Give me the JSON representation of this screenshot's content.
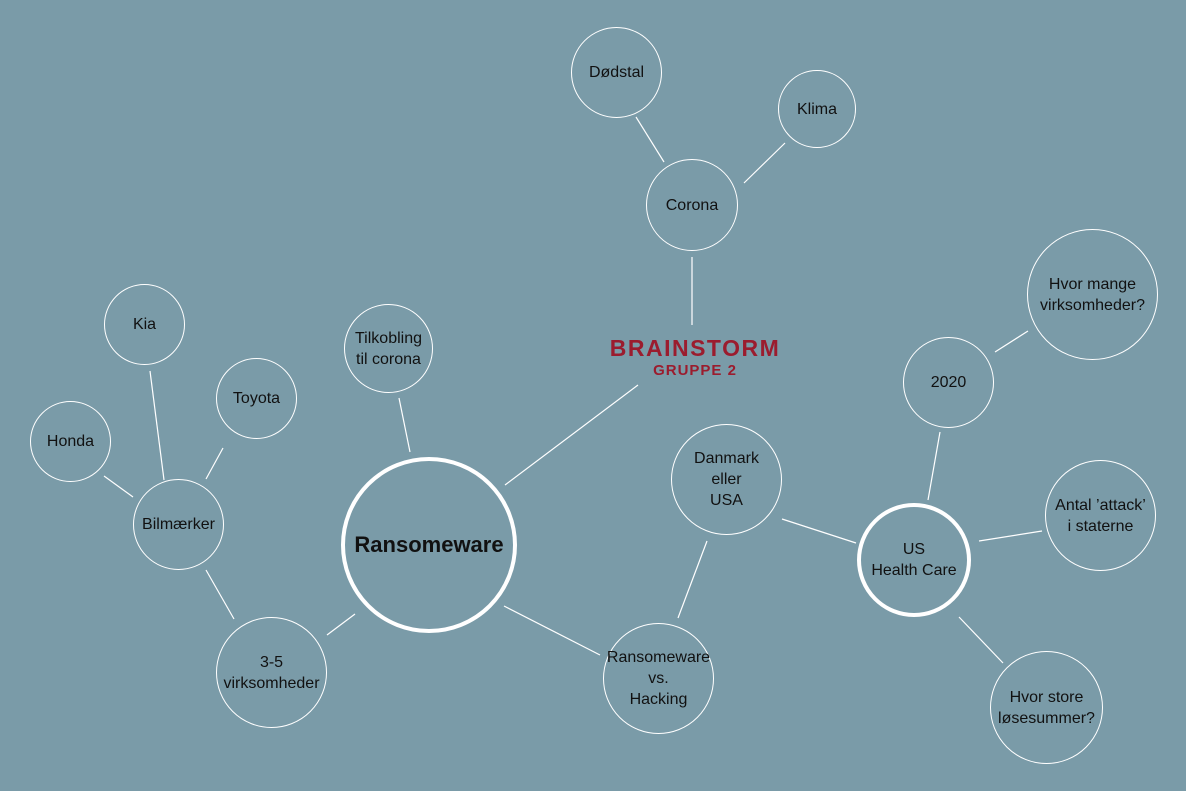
{
  "title": {
    "main": "BRAINSTORM",
    "sub": "GRUPPE 2"
  },
  "colors": {
    "background": "#7a9ba8",
    "line": "#ffffff",
    "title": "#9b1c2e",
    "text": "#111111"
  },
  "nodes": {
    "ransomeware": "Ransomeware",
    "dodstal": "Dødstal",
    "klima": "Klima",
    "corona": "Corona",
    "kia": "Kia",
    "toyota": "Toyota",
    "honda": "Honda",
    "bilmaerker": "Bilmærker",
    "tilkobling": "Tilkobling\ntil corona",
    "virksomheder": "3-5\nvirksomheder",
    "danmark": "Danmark\neller\nUSA",
    "ransom_vs_hacking": "Ransomeware\nvs.\nHacking",
    "year_2020": "2020",
    "hvor_mange": "Hvor mange\nvirksomheder?",
    "us_health": "US\nHealth Care",
    "antal_attack": "Antal ’attack’\ni staterne",
    "hvor_store": "Hvor store\nløsesummer?"
  }
}
